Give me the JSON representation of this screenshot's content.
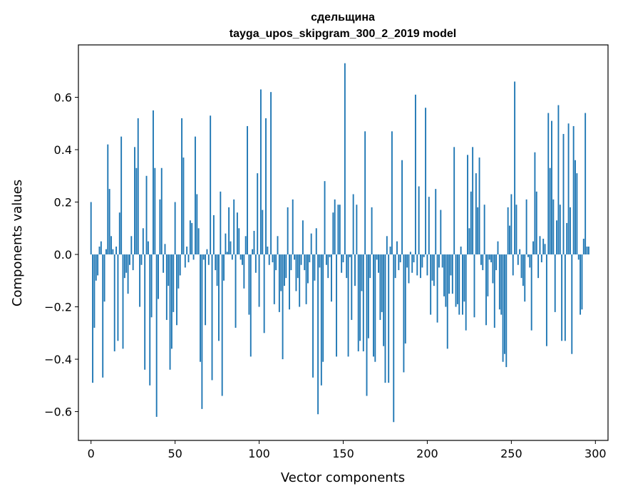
{
  "chart_data": {
    "type": "bar",
    "title": "сдельщина",
    "subtitle": "tayga_upos_skipgram_300_2_2019 model",
    "xlabel": "Vector components",
    "ylabel": "Components values",
    "xlim": [
      -7.5,
      307.5
    ],
    "ylim": [
      -0.71,
      0.8
    ],
    "xticks": [
      0,
      50,
      100,
      150,
      200,
      250,
      300
    ],
    "xtick_labels": [
      "0",
      "50",
      "100",
      "150",
      "200",
      "250",
      "300"
    ],
    "yticks": [
      -0.6,
      -0.4,
      -0.2,
      0.0,
      0.2,
      0.4,
      0.6
    ],
    "ytick_labels": [
      "−0.6",
      "−0.4",
      "−0.2",
      "0.0",
      "0.2",
      "0.4",
      "0.6"
    ],
    "bar_color": "#1f77b4",
    "grid": false,
    "values": [
      0.2,
      -0.49,
      -0.28,
      -0.1,
      -0.08,
      0.03,
      0.05,
      -0.47,
      -0.18,
      0.02,
      0.42,
      0.25,
      0.07,
      0.02,
      -0.37,
      0.03,
      -0.33,
      0.16,
      0.45,
      -0.36,
      -0.09,
      -0.07,
      -0.15,
      -0.04,
      0.07,
      -0.06,
      0.41,
      0.33,
      0.52,
      -0.2,
      -0.04,
      0.1,
      -0.44,
      0.3,
      0.05,
      -0.5,
      -0.24,
      0.55,
      0.33,
      -0.62,
      -0.17,
      0.21,
      0.33,
      -0.07,
      0.04,
      -0.25,
      -0.12,
      -0.44,
      -0.36,
      -0.22,
      0.2,
      -0.27,
      -0.13,
      -0.08,
      0.52,
      0.37,
      -0.05,
      0.03,
      -0.03,
      0.13,
      0.12,
      -0.02,
      0.45,
      0.23,
      0.1,
      -0.41,
      -0.59,
      -0.02,
      -0.27,
      0.02,
      -0.04,
      0.53,
      -0.48,
      0.15,
      -0.06,
      -0.12,
      -0.33,
      0.24,
      -0.54,
      -0.1,
      0.08,
      0.01,
      0.18,
      0.05,
      -0.02,
      0.21,
      -0.28,
      0.16,
      0.1,
      -0.02,
      -0.04,
      -0.13,
      0.07,
      0.49,
      -0.23,
      -0.39,
      0.02,
      0.09,
      -0.07,
      0.31,
      -0.2,
      0.63,
      0.17,
      -0.3,
      0.52,
      0.03,
      -0.04,
      0.62,
      -0.03,
      -0.19,
      -0.06,
      0.07,
      -0.22,
      -0.14,
      -0.4,
      -0.12,
      -0.09,
      0.18,
      -0.21,
      -0.06,
      0.21,
      -0.02,
      -0.14,
      -0.09,
      -0.2,
      -0.04,
      0.13,
      -0.06,
      -0.19,
      -0.11,
      -0.03,
      0.08,
      -0.47,
      -0.1,
      0.1,
      -0.61,
      -0.05,
      -0.5,
      -0.41,
      0.28,
      -0.04,
      -0.09,
      -0.01,
      -0.18,
      0.16,
      0.21,
      -0.39,
      0.19,
      0.19,
      -0.07,
      -0.03,
      0.73,
      -0.09,
      -0.39,
      -0.01,
      -0.25,
      0.23,
      -0.12,
      0.19,
      -0.37,
      -0.33,
      -0.14,
      -0.37,
      0.47,
      -0.54,
      -0.32,
      -0.09,
      0.18,
      -0.39,
      -0.41,
      -0.02,
      -0.07,
      -0.25,
      -0.22,
      -0.35,
      -0.49,
      0.07,
      -0.49,
      0.03,
      0.47,
      -0.64,
      -0.09,
      0.05,
      -0.06,
      -0.03,
      0.36,
      -0.45,
      -0.34,
      -0.05,
      -0.11,
      0.01,
      -0.07,
      -0.03,
      0.61,
      -0.08,
      0.26,
      -0.09,
      -0.05,
      -0.01,
      0.56,
      -0.08,
      0.22,
      -0.23,
      -0.1,
      -0.12,
      0.25,
      -0.26,
      -0.05,
      0.17,
      -0.05,
      -0.16,
      -0.2,
      -0.36,
      -0.15,
      -0.08,
      -0.15,
      0.41,
      -0.2,
      -0.19,
      -0.23,
      0.03,
      -0.23,
      -0.18,
      -0.29,
      0.38,
      0.1,
      0.24,
      0.41,
      -0.24,
      0.31,
      0.18,
      0.37,
      -0.04,
      -0.06,
      0.19,
      -0.27,
      -0.16,
      -0.02,
      -0.03,
      -0.11,
      -0.28,
      -0.06,
      0.05,
      -0.21,
      -0.23,
      -0.41,
      -0.38,
      -0.43,
      0.18,
      0.11,
      0.23,
      -0.08,
      0.66,
      0.19,
      -0.04,
      0.02,
      -0.09,
      -0.12,
      -0.18,
      0.21,
      -0.01,
      -0.05,
      -0.29,
      0.05,
      0.39,
      0.24,
      -0.09,
      0.07,
      -0.03,
      0.06,
      0.04,
      -0.35,
      0.54,
      0.33,
      0.51,
      0.21,
      -0.22,
      0.13,
      0.57,
      0.19,
      -0.33,
      0.46,
      -0.33,
      0.12,
      0.5,
      0.18,
      -0.38,
      0.49,
      0.36,
      0.31,
      -0.02,
      -0.23,
      -0.21,
      0.06,
      0.54,
      0.03,
      0.03
    ]
  }
}
